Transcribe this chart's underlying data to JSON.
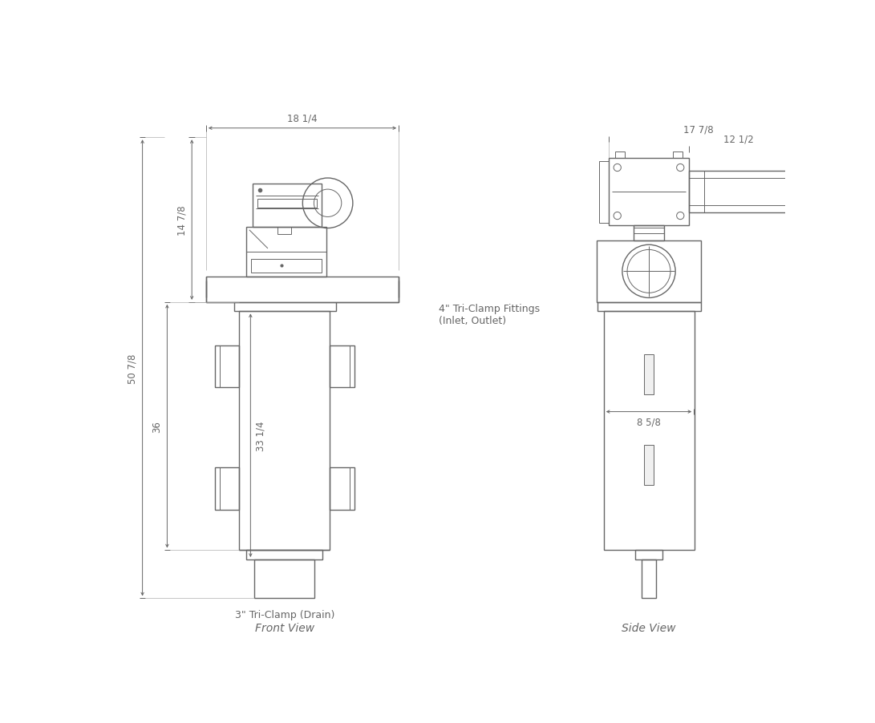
{
  "bg_color": "#ffffff",
  "lc": "#666666",
  "lw": 1.0,
  "tlw": 0.7,
  "dlw": 0.7,
  "title_front": "Front View",
  "title_side": "Side View",
  "label_drain": "3\" Tri-Clamp (Drain)",
  "label_fittings": "4\" Tri-Clamp Fittings\n(Inlet, Outlet)",
  "dim_18_14": "18 1/4",
  "dim_14_78": "14 7/8",
  "dim_36": "36",
  "dim_50_78": "50 7/8",
  "dim_33_14": "33 1/4",
  "dim_17_78": "17 7/8",
  "dim_12_12": "12 1/2",
  "dim_8_58": "8 5/8",
  "fs_dim": 8.5,
  "fs_label": 9,
  "fs_title": 10
}
